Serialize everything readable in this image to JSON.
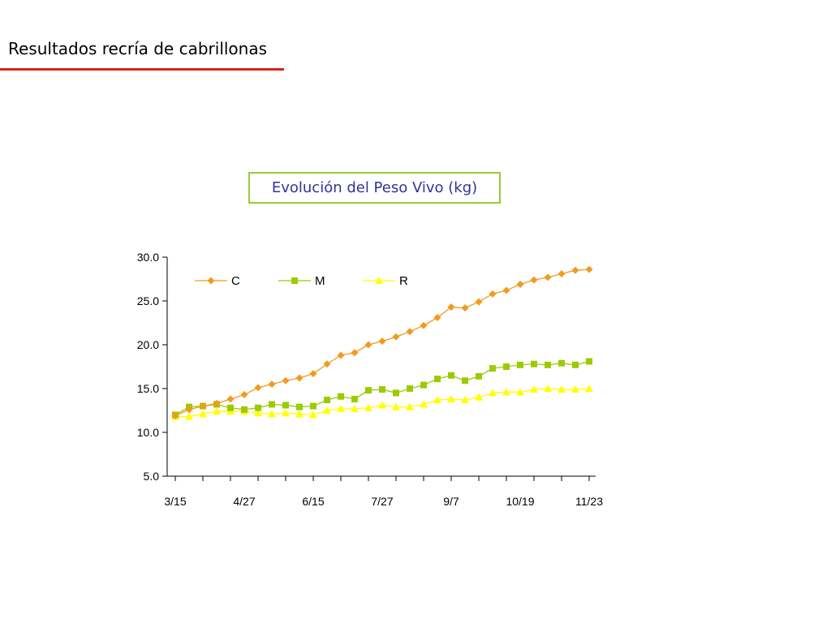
{
  "slide": {
    "title": "Resultados recría de cabrillonas"
  },
  "chart_data": {
    "type": "line",
    "title": "Evolución del Peso Vivo (kg)",
    "xlabel": "",
    "ylabel": "",
    "ylim": [
      5.0,
      30.0
    ],
    "yticks": [
      "5.0",
      "10.0",
      "15.0",
      "20.0",
      "25.0",
      "30.0"
    ],
    "x_tick_labels": [
      "3/15",
      "4/27",
      "6/15",
      "7/27",
      "9/7",
      "10/19",
      "11/23"
    ],
    "x_tick_label_positions": [
      0,
      5,
      10,
      15,
      20,
      25,
      30
    ],
    "point_count": 31,
    "grid": false,
    "legend": "top-left",
    "series": [
      {
        "name": "C",
        "color": "#f29a1e",
        "marker": "diamond",
        "values": [
          11.9,
          12.6,
          13.0,
          13.3,
          13.8,
          14.3,
          15.1,
          15.5,
          15.9,
          16.2,
          16.7,
          17.8,
          18.8,
          19.1,
          20.0,
          20.4,
          20.9,
          21.5,
          22.2,
          23.1,
          24.3,
          24.2,
          24.9,
          25.8,
          26.2,
          26.9,
          27.4,
          27.7,
          28.1,
          28.5,
          28.6
        ]
      },
      {
        "name": "M",
        "color": "#99cc00",
        "marker": "square",
        "values": [
          12.0,
          12.9,
          13.0,
          13.2,
          12.8,
          12.6,
          12.8,
          13.2,
          13.1,
          12.9,
          13.0,
          13.7,
          14.1,
          13.8,
          14.8,
          14.9,
          14.5,
          15.0,
          15.4,
          16.1,
          16.5,
          15.9,
          16.4,
          17.3,
          17.5,
          17.7,
          17.8,
          17.7,
          17.9,
          17.7,
          18.1
        ]
      },
      {
        "name": "R",
        "color": "#ffff00",
        "marker": "triangle",
        "values": [
          11.8,
          11.8,
          12.1,
          12.4,
          12.4,
          12.4,
          12.2,
          12.1,
          12.2,
          12.1,
          12.0,
          12.5,
          12.7,
          12.7,
          12.8,
          13.1,
          12.9,
          12.9,
          13.2,
          13.7,
          13.8,
          13.7,
          14.0,
          14.5,
          14.6,
          14.6,
          14.9,
          15.0,
          14.9,
          14.9,
          15.0
        ]
      }
    ]
  }
}
